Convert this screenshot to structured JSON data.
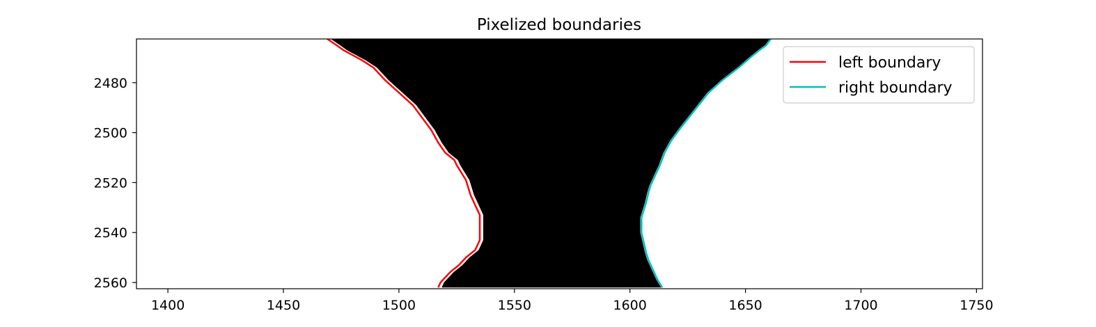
{
  "chart_data": {
    "type": "line",
    "title": "Pixelized boundaries",
    "xlabel": "",
    "ylabel": "",
    "xlim": [
      1386.4,
      1752.6
    ],
    "ylim": [
      2562.5,
      2462.5
    ],
    "y_inverted": true,
    "grid": false,
    "legend_placement": "top-right",
    "xticks": [
      1400,
      1450,
      1500,
      1550,
      1600,
      1650,
      1700,
      1750
    ],
    "xtick_labels": [
      "1400",
      "1450",
      "1500",
      "1550",
      "1600",
      "1650",
      "1700",
      "1750"
    ],
    "yticks": [
      2480,
      2500,
      2520,
      2540,
      2560
    ],
    "ytick_labels": [
      "2480",
      "2500",
      "2520",
      "2540",
      "2560"
    ],
    "background_image": "binary mask: white outside boundaries, black region between left and right boundary",
    "series": [
      {
        "name": "left boundary",
        "color": "#ff0000",
        "x": [
          1469,
          1473,
          1476,
          1480,
          1484,
          1489,
          1494,
          1500,
          1506,
          1510,
          1514,
          1517,
          1520,
          1524,
          1525,
          1527,
          1529,
          1530,
          1531,
          1532,
          1534,
          1535,
          1535,
          1533,
          1529,
          1526,
          1522,
          1520,
          1519,
          1518,
          1517
        ],
        "y": [
          2462.5,
          2465,
          2467,
          2469,
          2471,
          2474,
          2479,
          2484,
          2489,
          2494,
          2499,
          2504,
          2508,
          2511,
          2513,
          2516,
          2519,
          2522,
          2525,
          2527,
          2531,
          2533,
          2543,
          2547,
          2550,
          2553,
          2556,
          2558,
          2559,
          2560,
          2562
        ]
      },
      {
        "name": "right boundary",
        "color": "#00bfbf",
        "x": [
          1661,
          1659,
          1656,
          1652,
          1647,
          1640,
          1634,
          1628,
          1622,
          1618,
          1615,
          1613,
          1611,
          1609,
          1608,
          1607,
          1606,
          1605,
          1605,
          1606,
          1607,
          1608,
          1609,
          1610,
          1611,
          1612,
          1614
        ],
        "y": [
          2462.5,
          2465,
          2467,
          2470,
          2474,
          2479,
          2484,
          2491,
          2498,
          2503,
          2508,
          2513,
          2517,
          2521,
          2524,
          2528,
          2531,
          2534,
          2540,
          2544,
          2548,
          2551,
          2553,
          2555,
          2557,
          2559,
          2562
        ]
      }
    ]
  }
}
